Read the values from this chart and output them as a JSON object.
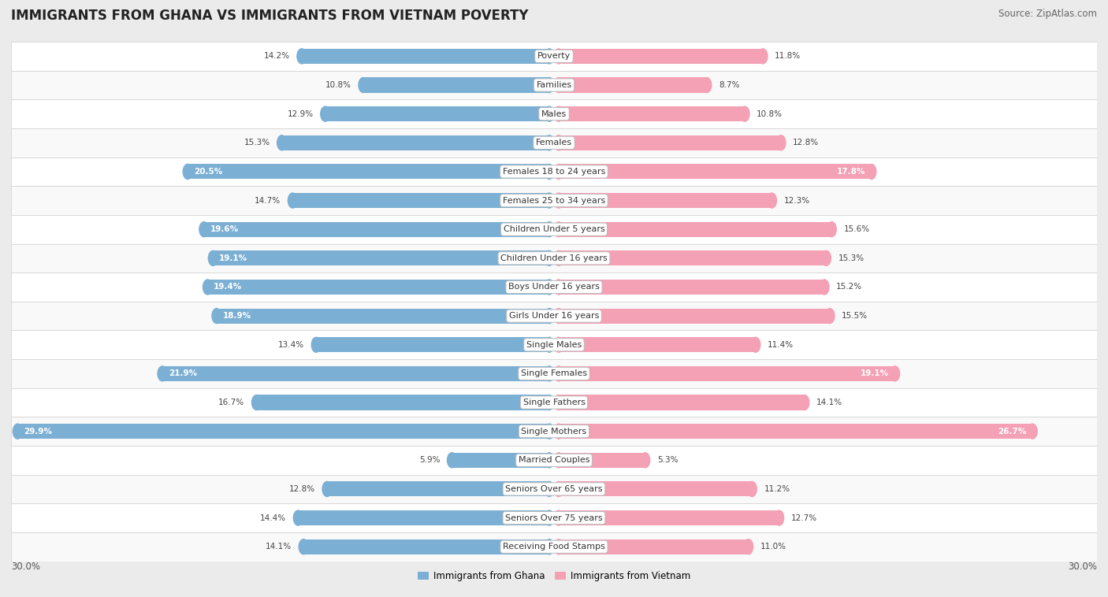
{
  "title": "IMMIGRANTS FROM GHANA VS IMMIGRANTS FROM VIETNAM POVERTY",
  "source": "Source: ZipAtlas.com",
  "categories": [
    "Poverty",
    "Families",
    "Males",
    "Females",
    "Females 18 to 24 years",
    "Females 25 to 34 years",
    "Children Under 5 years",
    "Children Under 16 years",
    "Boys Under 16 years",
    "Girls Under 16 years",
    "Single Males",
    "Single Females",
    "Single Fathers",
    "Single Mothers",
    "Married Couples",
    "Seniors Over 65 years",
    "Seniors Over 75 years",
    "Receiving Food Stamps"
  ],
  "ghana_values": [
    14.2,
    10.8,
    12.9,
    15.3,
    20.5,
    14.7,
    19.6,
    19.1,
    19.4,
    18.9,
    13.4,
    21.9,
    16.7,
    29.9,
    5.9,
    12.8,
    14.4,
    14.1
  ],
  "vietnam_values": [
    11.8,
    8.7,
    10.8,
    12.8,
    17.8,
    12.3,
    15.6,
    15.3,
    15.2,
    15.5,
    11.4,
    19.1,
    14.1,
    26.7,
    5.3,
    11.2,
    12.7,
    11.0
  ],
  "ghana_color": "#7bafd4",
  "vietnam_color": "#f4a0b5",
  "ghana_label": "Immigrants from Ghana",
  "vietnam_label": "Immigrants from Vietnam",
  "max_value": 30.0,
  "background_color": "#ebebeb",
  "row_bg_even": "#f9f9f9",
  "row_bg_odd": "#ffffff",
  "title_fontsize": 12,
  "source_fontsize": 8.5,
  "label_fontsize": 8,
  "value_fontsize": 7.5,
  "axis_label_fontsize": 8.5,
  "ghana_white_threshold": 17.0,
  "vietnam_white_threshold": 17.0
}
